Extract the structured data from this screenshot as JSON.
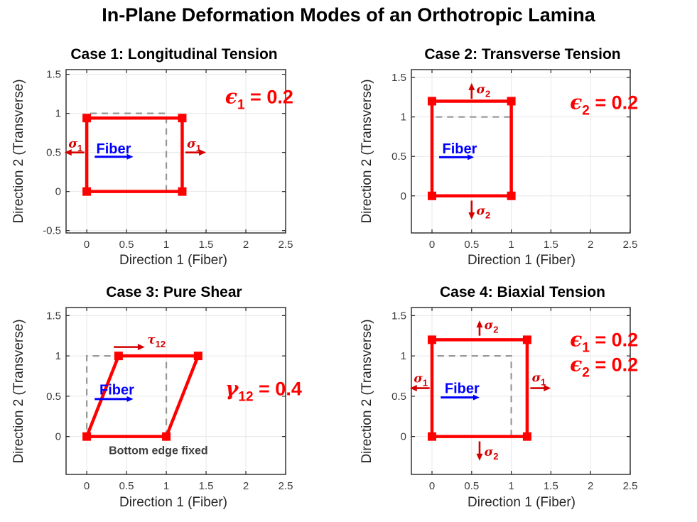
{
  "figure_title": "In-Plane Deformation Modes of an Orthotropic Lamina",
  "palette": {
    "shape_red": "#ff0000",
    "stress_red": "#d40000",
    "strain_red": "#ff0000",
    "fiber_blue": "#0000ff",
    "dash_gray": "#979797",
    "grid_gray": "#e7e7e7",
    "axis_dark": "#262626",
    "tick_text": "#3b3b3b",
    "note_gray": "#3d3d3d"
  },
  "chart_data": [
    {
      "type": "line",
      "title": "Case 1: Longitudinal Tension",
      "xlabel": "Direction 1 (Fiber)",
      "ylabel": "Direction 2 (Transverse)",
      "xlim": [
        -0.26,
        2.5
      ],
      "ylim": [
        -0.53,
        1.56
      ],
      "xticks": [
        0,
        0.5,
        1,
        1.5,
        2,
        2.5
      ],
      "yticks": [
        -0.5,
        0,
        0.5,
        1,
        1.5
      ],
      "grid": true,
      "original_square": [
        [
          0,
          0
        ],
        [
          1,
          0
        ],
        [
          1,
          1
        ],
        [
          0,
          1
        ]
      ],
      "deformed_shape": [
        [
          0,
          0
        ],
        [
          1.2,
          0
        ],
        [
          1.2,
          0.94
        ],
        [
          0,
          0.94
        ]
      ],
      "strain_labels": [
        {
          "symbol": "ϵ",
          "sub": "1",
          "rest": " = 0.2",
          "x": 1.74,
          "y": 1.13
        }
      ],
      "stress_arrows": [
        {
          "from": [
            -0.03,
            0.5
          ],
          "to": [
            -0.28,
            0.5
          ]
        },
        {
          "from": [
            1.24,
            0.5
          ],
          "to": [
            1.5,
            0.5
          ]
        }
      ],
      "stress_labels": [
        {
          "symbol": "σ",
          "sub": "1",
          "x": -0.23,
          "y": 0.56
        },
        {
          "symbol": "σ",
          "sub": "1",
          "x": 1.26,
          "y": 0.56
        }
      ],
      "fiber": {
        "label": "Fiber",
        "x": 0.12,
        "y": 0.49,
        "arrow_from": [
          0.1,
          0.445
        ],
        "arrow_to": [
          0.585,
          0.445
        ]
      },
      "note": null
    },
    {
      "type": "line",
      "title": "Case 2: Transverse Tension",
      "xlabel": "Direction 1 (Fiber)",
      "ylabel": "Direction 2 (Transverse)",
      "xlim": [
        -0.26,
        2.5
      ],
      "ylim": [
        -0.47,
        1.6
      ],
      "xticks": [
        0,
        0.5,
        1,
        1.5,
        2,
        2.5
      ],
      "yticks": [
        0,
        0.5,
        1,
        1.5
      ],
      "grid": true,
      "original_square": [
        [
          0,
          0
        ],
        [
          1,
          0
        ],
        [
          1,
          1
        ],
        [
          0,
          1
        ]
      ],
      "deformed_shape": [
        [
          0,
          0
        ],
        [
          1,
          0
        ],
        [
          1,
          1.2
        ],
        [
          0,
          1.2
        ]
      ],
      "strain_labels": [
        {
          "symbol": "ϵ",
          "sub": "2",
          "rest": " = 0.2",
          "x": 1.74,
          "y": 1.1
        }
      ],
      "stress_arrows": [
        {
          "from": [
            0.5,
            1.23
          ],
          "to": [
            0.5,
            1.43
          ]
        },
        {
          "from": [
            0.5,
            -0.06
          ],
          "to": [
            0.5,
            -0.3
          ]
        }
      ],
      "stress_labels": [
        {
          "symbol": "σ",
          "sub": "2",
          "x": 0.56,
          "y": 1.3
        },
        {
          "symbol": "σ",
          "sub": "2",
          "x": 0.56,
          "y": -0.24
        }
      ],
      "fiber": {
        "label": "Fiber",
        "x": 0.13,
        "y": 0.54,
        "arrow_from": [
          0.09,
          0.49
        ],
        "arrow_to": [
          0.53,
          0.49
        ]
      },
      "note": null
    },
    {
      "type": "line",
      "title": "Case 3: Pure Shear",
      "xlabel": "Direction 1 (Fiber)",
      "ylabel": "Direction 2 (Transverse)",
      "xlim": [
        -0.26,
        2.5
      ],
      "ylim": [
        -0.47,
        1.6
      ],
      "xticks": [
        0,
        0.5,
        1,
        1.5,
        2,
        2.5
      ],
      "yticks": [
        0,
        0.5,
        1,
        1.5
      ],
      "grid": true,
      "original_square": [
        [
          0,
          0
        ],
        [
          1,
          0
        ],
        [
          1,
          1
        ],
        [
          0,
          1
        ]
      ],
      "deformed_shape": [
        [
          0,
          0
        ],
        [
          1,
          0
        ],
        [
          1.4,
          1
        ],
        [
          0.4,
          1
        ]
      ],
      "strain_labels": [
        {
          "symbol": "γ",
          "sub": "12",
          "rest": " = 0.4",
          "x": 1.74,
          "y": 0.51
        }
      ],
      "stress_arrows": [
        {
          "from": [
            0.34,
            1.11
          ],
          "to": [
            0.73,
            1.11
          ]
        }
      ],
      "stress_labels": [
        {
          "symbol": "τ",
          "sub": "12",
          "x": 0.76,
          "y": 1.15
        }
      ],
      "fiber": {
        "label": "Fiber",
        "x": 0.16,
        "y": 0.52,
        "arrow_from": [
          0.1,
          0.465
        ],
        "arrow_to": [
          0.585,
          0.465
        ]
      },
      "note": {
        "text": "Bottom edge fixed",
        "x": 0.9,
        "y": -0.22
      }
    },
    {
      "type": "line",
      "title": "Case 4: Biaxial Tension",
      "xlabel": "Direction 1 (Fiber)",
      "ylabel": "Direction 2 (Transverse)",
      "xlim": [
        -0.26,
        2.5
      ],
      "ylim": [
        -0.47,
        1.6
      ],
      "xticks": [
        0,
        0.5,
        1,
        1.5,
        2,
        2.5
      ],
      "yticks": [
        0,
        0.5,
        1,
        1.5
      ],
      "grid": true,
      "original_square": [
        [
          0,
          0
        ],
        [
          1,
          0
        ],
        [
          1,
          1
        ],
        [
          0,
          1
        ]
      ],
      "deformed_shape": [
        [
          0,
          0
        ],
        [
          1.2,
          0
        ],
        [
          1.2,
          1.2
        ],
        [
          0,
          1.2
        ]
      ],
      "strain_labels": [
        {
          "symbol": "ϵ",
          "sub": "1",
          "rest": " = 0.2",
          "x": 1.74,
          "y": 1.12
        },
        {
          "symbol": "ϵ",
          "sub": "2",
          "rest": " = 0.2",
          "x": 1.74,
          "y": 0.81
        }
      ],
      "stress_arrows": [
        {
          "from": [
            -0.03,
            0.6
          ],
          "to": [
            -0.28,
            0.6
          ]
        },
        {
          "from": [
            1.24,
            0.6
          ],
          "to": [
            1.5,
            0.6
          ]
        },
        {
          "from": [
            0.6,
            1.25
          ],
          "to": [
            0.6,
            1.44
          ]
        },
        {
          "from": [
            0.6,
            -0.06
          ],
          "to": [
            0.6,
            -0.3
          ]
        }
      ],
      "stress_labels": [
        {
          "symbol": "σ",
          "sub": "1",
          "x": -0.23,
          "y": 0.67
        },
        {
          "symbol": "σ",
          "sub": "1",
          "x": 1.26,
          "y": 0.68
        },
        {
          "symbol": "σ",
          "sub": "2",
          "x": 0.66,
          "y": 1.33
        },
        {
          "symbol": "σ",
          "sub": "2",
          "x": 0.66,
          "y": -0.24
        }
      ],
      "fiber": {
        "label": "Fiber",
        "x": 0.16,
        "y": 0.54,
        "arrow_from": [
          0.11,
          0.485
        ],
        "arrow_to": [
          0.6,
          0.485
        ]
      },
      "note": null
    }
  ]
}
